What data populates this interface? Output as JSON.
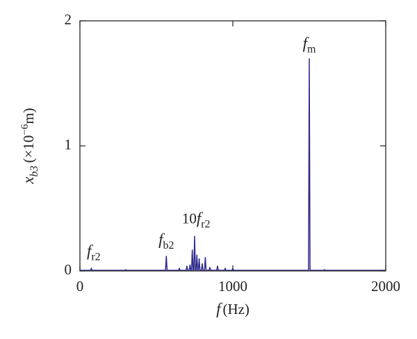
{
  "chart_data": {
    "type": "line",
    "xlabel": {
      "symbol": "f",
      "text": "(Hz)"
    },
    "ylabel": {
      "symbol": "x",
      "sub": "b3",
      "text": "(×10",
      "sup": "−6",
      "unit": "m)"
    },
    "xlim": [
      0,
      2000
    ],
    "xticks": [
      0,
      1000,
      2000
    ],
    "ylim": [
      0,
      2
    ],
    "yticks": [
      0,
      1,
      2
    ],
    "series": [
      {
        "color": "#2e2a8c",
        "x": [
          0,
          70,
          75,
          80,
          295,
          300,
          305,
          560,
          565,
          570,
          645,
          650,
          655,
          695,
          700,
          705,
          715,
          720,
          725,
          730,
          735,
          740,
          745,
          750,
          755,
          760,
          765,
          770,
          775,
          780,
          785,
          795,
          800,
          805,
          815,
          820,
          825,
          845,
          850,
          855,
          895,
          900,
          905,
          945,
          950,
          955,
          995,
          1000,
          1005,
          1495,
          1500,
          1505,
          1595,
          1600,
          1605,
          2000
        ],
        "values": [
          0.005,
          0.005,
          0.02,
          0.005,
          0.005,
          0.01,
          0.005,
          0.005,
          0.12,
          0.005,
          0.005,
          0.02,
          0.005,
          0.005,
          0.04,
          0.005,
          0.005,
          0.05,
          0.005,
          0.005,
          0.17,
          0.005,
          0.005,
          0.28,
          0.005,
          0.005,
          0.13,
          0.005,
          0.005,
          0.1,
          0.005,
          0.005,
          0.06,
          0.005,
          0.005,
          0.11,
          0.005,
          0.005,
          0.03,
          0.005,
          0.005,
          0.04,
          0.005,
          0.005,
          0.02,
          0.005,
          0.005,
          0.02,
          0.005,
          0.005,
          1.7,
          0.005,
          0.005,
          0.01,
          0.005,
          0.005
        ]
      }
    ],
    "annotations": [
      {
        "symbol": "f",
        "sub": "r2",
        "x": 90,
        "y": 0.12
      },
      {
        "symbol": "f",
        "sub": "b2",
        "x": 565,
        "y": 0.21
      },
      {
        "prefix": "10",
        "symbol": "f",
        "sub": "r2",
        "x": 760,
        "y": 0.38
      },
      {
        "symbol": "f",
        "sub": "m",
        "x": 1500,
        "y": 1.78
      }
    ]
  }
}
